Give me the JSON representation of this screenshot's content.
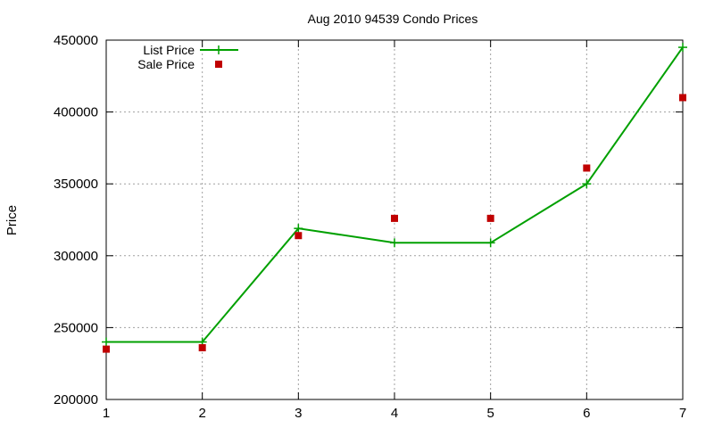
{
  "chart_data": {
    "type": "line",
    "title": "Aug 2010 94539 Condo Prices",
    "xlabel": "",
    "ylabel": "Price",
    "xlim": [
      1,
      7
    ],
    "ylim": [
      200000,
      450000
    ],
    "x_ticks": [
      1,
      2,
      3,
      4,
      5,
      6,
      7
    ],
    "y_ticks": [
      200000,
      250000,
      300000,
      350000,
      400000,
      450000
    ],
    "grid": true,
    "legend_position": "top-left",
    "series": [
      {
        "name": "List Price",
        "style": "line-with-plus-markers",
        "color": "#00a000",
        "x": [
          1,
          2,
          3,
          4,
          5,
          6,
          7
        ],
        "values": [
          240000,
          240000,
          319000,
          309000,
          309000,
          350000,
          445000
        ]
      },
      {
        "name": "Sale Price",
        "style": "square-markers",
        "color": "#c00000",
        "x": [
          1,
          2,
          3,
          4,
          5,
          6,
          7
        ],
        "values": [
          235000,
          236000,
          314000,
          326000,
          326000,
          361000,
          410000
        ]
      }
    ]
  }
}
